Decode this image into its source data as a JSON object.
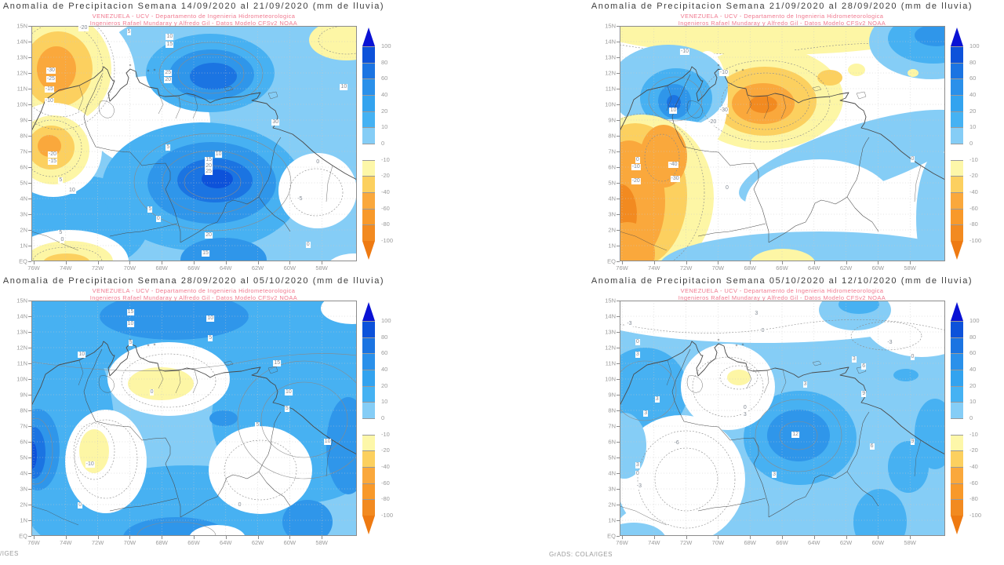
{
  "page": {
    "footer_left": "/IGES",
    "footer_center": "GrADS: COLA/IGES"
  },
  "palette": {
    "b0": "#85cdf6",
    "b1": "#47b1f2",
    "b2": "#2f96ea",
    "b3": "#1b74e2",
    "b4": "#0d52da",
    "y0": "#fdf6a5",
    "y1": "#fcd05f",
    "o1": "#faa83c",
    "o2": "#f28a20",
    "titlec": "#3c3c3c",
    "subc": "#f0798f",
    "axisc": "#9a9a9a",
    "framec": "#8c8c8c",
    "geoc": "#4a4a4a",
    "ringc": "#8a8a8a",
    "gridc": "#c8c8c8"
  },
  "axes": {
    "y_ticks": [
      "15N",
      "14N",
      "13N",
      "12N",
      "11N",
      "10N",
      "9N",
      "8N",
      "7N",
      "6N",
      "5N",
      "4N",
      "3N",
      "2N",
      "1N",
      "EQ"
    ],
    "x_ticks": [
      "76W",
      "74W",
      "72W",
      "70W",
      "68W",
      "66W",
      "64W",
      "62W",
      "60W",
      "58W"
    ]
  },
  "colorbar": {
    "levels": [
      "100",
      "80",
      "60",
      "40",
      "20",
      "10",
      "0",
      "-10",
      "-20",
      "-40",
      "-60",
      "-80",
      "-100"
    ],
    "segment_colors": [
      "#0d52da",
      "#1b74e2",
      "#2a90ea",
      "#33a3ef",
      "#45b2f3",
      "#85cdf6",
      "#ffffff",
      "#fdf7a9",
      "#fcd05f",
      "#faa83c",
      "#f8992a",
      "#f28a20"
    ],
    "arrow_top": "#0a12d4",
    "arrow_bottom": "#ee7a12"
  },
  "chart_data": [
    {
      "type": "heatmap",
      "title": "Anomalia de Precipitacion Semana 14/09/2020 al 21/09/2020 (mm de lluvia)",
      "subtitle": [
        "VENEZUELA - UCV - Departamento de Ingenieria Hidrometeorologica",
        "Ingenieros Rafael Mundaray y Alfredo Gil - Datos Modelo CFSv2 NOAA"
      ],
      "units": "mm de lluvia",
      "contour_labels": [
        {
          "v": "-20",
          "x": 16,
          "y": 1
        },
        {
          "v": "5",
          "x": 30,
          "y": 2.5
        },
        {
          "v": "10",
          "x": 42.5,
          "y": 4.5
        },
        {
          "v": "15",
          "x": 42.5,
          "y": 8
        },
        {
          "v": "-30",
          "x": 6,
          "y": 19
        },
        {
          "v": "-25",
          "x": 6,
          "y": 22.5
        },
        {
          "v": "-15",
          "x": 5.5,
          "y": 27
        },
        {
          "v": "-10",
          "x": 5.5,
          "y": 32
        },
        {
          "v": "25",
          "x": 42,
          "y": 20
        },
        {
          "v": "20",
          "x": 42,
          "y": 23
        },
        {
          "v": "10",
          "x": 96,
          "y": 26
        },
        {
          "v": "30",
          "x": 75,
          "y": 41
        },
        {
          "v": "5",
          "x": 42,
          "y": 51.5
        },
        {
          "v": "-20",
          "x": 6.5,
          "y": 54.5
        },
        {
          "v": "-15",
          "x": 6.5,
          "y": 57.5
        },
        {
          "v": "5",
          "x": 9,
          "y": 65.5
        },
        {
          "v": "10",
          "x": 12.5,
          "y": 70
        },
        {
          "v": "10",
          "x": 57.5,
          "y": 54.5
        },
        {
          "v": "15",
          "x": 54.5,
          "y": 57
        },
        {
          "v": "20",
          "x": 54.5,
          "y": 59.5
        },
        {
          "v": "25",
          "x": 54.5,
          "y": 62
        },
        {
          "v": "0",
          "x": 88,
          "y": 58
        },
        {
          "v": "-5",
          "x": 82.5,
          "y": 73.5
        },
        {
          "v": "5",
          "x": 36.5,
          "y": 78
        },
        {
          "v": "0",
          "x": 39,
          "y": 82
        },
        {
          "v": "20",
          "x": 54.5,
          "y": 89
        },
        {
          "v": "5",
          "x": 9,
          "y": 88
        },
        {
          "v": "0",
          "x": 9.5,
          "y": 91
        },
        {
          "v": "15",
          "x": 53.5,
          "y": 96.5
        },
        {
          "v": "0",
          "x": 85,
          "y": 93
        }
      ]
    },
    {
      "type": "heatmap",
      "title": "Anomalia de Precipitacion Semana 21/09/2020 al 28/09/2020 (mm de lluvia)",
      "subtitle": [
        "VENEZUELA - UCV - Departamento de Ingenieria Hidrometeorologica",
        "Ingenieros Rafael Mundaray y Alfredo Gil - Datos Modelo CFSv2 NOAA"
      ],
      "units": "mm de lluvia",
      "contour_labels": [
        {
          "v": "-10",
          "x": 20,
          "y": 11
        },
        {
          "v": "-10",
          "x": 32,
          "y": 20
        },
        {
          "v": "10",
          "x": 16.5,
          "y": 36
        },
        {
          "v": "-30",
          "x": 32,
          "y": 36
        },
        {
          "v": "-20",
          "x": 28.5,
          "y": 41
        },
        {
          "v": "0",
          "x": 5.5,
          "y": 57
        },
        {
          "v": "-10",
          "x": 5,
          "y": 60
        },
        {
          "v": "-20",
          "x": 5,
          "y": 66
        },
        {
          "v": "-40",
          "x": 16.5,
          "y": 59
        },
        {
          "v": "-30",
          "x": 17,
          "y": 65
        },
        {
          "v": "0",
          "x": 33,
          "y": 69
        },
        {
          "v": "0",
          "x": 90,
          "y": 56.5
        }
      ]
    },
    {
      "type": "heatmap",
      "title": "Anomalia de Precipitacion Semana 28/09/2020 al 05/10/2020 (mm de lluvia)",
      "subtitle": [
        "VENEZUELA - UCV - Departamento de Ingenieria Hidrometeorologica",
        "Ingenieros Rafael Mundaray y Alfredo Gil - Datos Modelo CFSv2 NOAA"
      ],
      "units": "mm de lluvia",
      "contour_labels": [
        {
          "v": "15",
          "x": 30.5,
          "y": 5
        },
        {
          "v": "10",
          "x": 30.5,
          "y": 10
        },
        {
          "v": "10",
          "x": 55,
          "y": 7.5
        },
        {
          "v": "5",
          "x": 55,
          "y": 16
        },
        {
          "v": "10",
          "x": 15.5,
          "y": 23
        },
        {
          "v": "5",
          "x": 30.5,
          "y": 18
        },
        {
          "v": "15",
          "x": 75.5,
          "y": 26.5
        },
        {
          "v": "10",
          "x": 79,
          "y": 39
        },
        {
          "v": "5",
          "x": 78.5,
          "y": 46
        },
        {
          "v": "0",
          "x": 37,
          "y": 39
        },
        {
          "v": "-10",
          "x": 18,
          "y": 69.5
        },
        {
          "v": "0",
          "x": 15,
          "y": 87
        },
        {
          "v": "0",
          "x": 64,
          "y": 87
        },
        {
          "v": "10",
          "x": 91,
          "y": 60
        },
        {
          "v": "5",
          "x": 69.5,
          "y": 53
        }
      ]
    },
    {
      "type": "heatmap",
      "title": "Anomalia de Precipitacion Semana 05/10/2020 al 12/10/2020 (mm de lluvia)",
      "subtitle": [
        "VENEZUELA - UCV - Departamento de Ingenieria Hidrometeorologica",
        "Ingenieros Rafael Mundaray y Alfredo Gil - Datos Modelo CFSv2 NOAA"
      ],
      "units": "mm de lluvia",
      "contour_labels": [
        {
          "v": "-3",
          "x": 3,
          "y": 10
        },
        {
          "v": "3",
          "x": 42,
          "y": 5.5
        },
        {
          "v": "0",
          "x": 44,
          "y": 13
        },
        {
          "v": "0",
          "x": 5.5,
          "y": 17.5
        },
        {
          "v": "3",
          "x": 5.5,
          "y": 23
        },
        {
          "v": "-3",
          "x": 83,
          "y": 18
        },
        {
          "v": "0",
          "x": 90,
          "y": 24
        },
        {
          "v": "3",
          "x": 72,
          "y": 25
        },
        {
          "v": "6",
          "x": 75,
          "y": 28
        },
        {
          "v": "3",
          "x": 57,
          "y": 35.5
        },
        {
          "v": "9",
          "x": 75,
          "y": 39.5
        },
        {
          "v": "3",
          "x": 11.5,
          "y": 42
        },
        {
          "v": "3",
          "x": 8,
          "y": 48
        },
        {
          "v": "0",
          "x": 38.5,
          "y": 45.5
        },
        {
          "v": "3",
          "x": 38.5,
          "y": 48.5
        },
        {
          "v": "12",
          "x": 54,
          "y": 57
        },
        {
          "v": "-6",
          "x": 17.5,
          "y": 60.5
        },
        {
          "v": "6",
          "x": 77.5,
          "y": 62
        },
        {
          "v": "9",
          "x": 90,
          "y": 60
        },
        {
          "v": "3",
          "x": 5.5,
          "y": 70
        },
        {
          "v": "0",
          "x": 5.5,
          "y": 73.5
        },
        {
          "v": "-3",
          "x": 6,
          "y": 79
        },
        {
          "v": "3",
          "x": 47.5,
          "y": 74
        }
      ]
    }
  ]
}
